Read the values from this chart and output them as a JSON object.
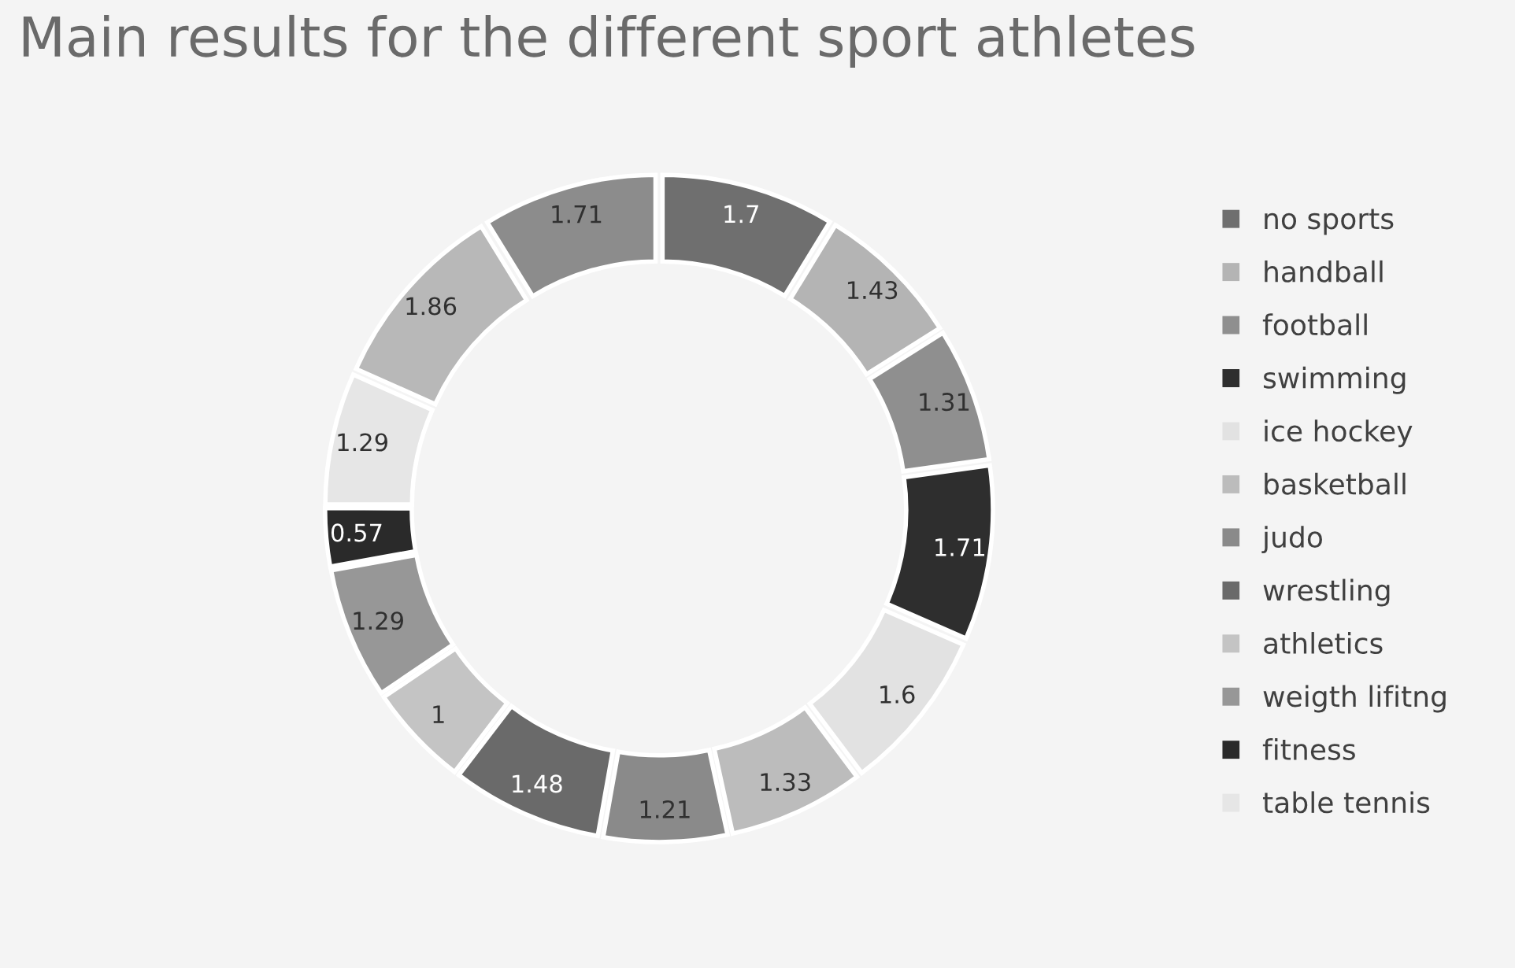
{
  "chart_data": {
    "type": "donut",
    "title": "Main results for the different sport athletes",
    "categories": [
      "no sports",
      "handball",
      "football",
      "swimming",
      "ice hockey",
      "basketball",
      "judo",
      "wrestling",
      "athletics",
      "weigth lifitng",
      "fitness",
      "table tennis",
      null,
      null
    ],
    "values": [
      1.7,
      1.43,
      1.31,
      1.71,
      1.6,
      1.33,
      1.21,
      1.48,
      1,
      1.29,
      0.57,
      1.29,
      1.86,
      1.71
    ],
    "colors": [
      "#6f6f6f",
      "#b4b4b4",
      "#8f8f8f",
      "#2e2e2e",
      "#e2e2e2",
      "#bcbcbc",
      "#8a8a8a",
      "#6a6a6a",
      "#c4c4c4",
      "#979797",
      "#2a2a2a",
      "#e6e6e6",
      "#b8b8b8",
      "#8c8c8c"
    ],
    "data_labels": true,
    "legend": "right"
  }
}
